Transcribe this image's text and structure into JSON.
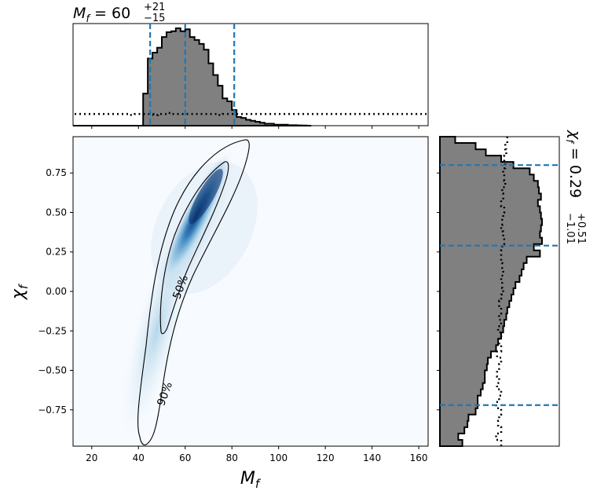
{
  "chart_data": {
    "type": "corner_plot",
    "x_param": {
      "label": "M",
      "subscript": "f",
      "title_median": "60",
      "title_plus": "+21",
      "title_minus": "−15",
      "range": [
        12,
        164
      ],
      "ticks": [
        20,
        40,
        60,
        80,
        100,
        120,
        140,
        160
      ],
      "quantiles": [
        45,
        60,
        81
      ],
      "histogram_bin_edges": [
        12,
        14,
        16,
        18,
        20,
        22,
        24,
        26,
        28,
        30,
        32,
        34,
        36,
        38,
        40,
        42,
        44,
        46,
        48,
        50,
        52,
        54,
        56,
        58,
        60,
        62,
        64,
        66,
        68,
        70,
        72,
        74,
        76,
        78,
        80,
        82,
        84,
        86,
        88,
        90,
        92,
        94,
        96,
        98,
        100,
        102,
        104,
        106,
        108,
        110,
        112,
        114
      ],
      "histogram_values": [
        0,
        0,
        0,
        0,
        0,
        0,
        0,
        0,
        0,
        0,
        0,
        0,
        0,
        0,
        0,
        0.33,
        0.69,
        0.75,
        0.8,
        0.91,
        0.96,
        0.97,
        1.0,
        0.97,
        0.99,
        0.91,
        0.88,
        0.84,
        0.78,
        0.64,
        0.52,
        0.41,
        0.28,
        0.25,
        0.16,
        0.09,
        0.08,
        0.06,
        0.05,
        0.04,
        0.03,
        0.02,
        0.02,
        0.01,
        0.01,
        0.01,
        0.005,
        0.005,
        0.003,
        0.002,
        0
      ],
      "prior_values": [
        0.12,
        0.12,
        0.12,
        0.12,
        0.12,
        0.12,
        0.12,
        0.12,
        0.12,
        0.12,
        0.12,
        0.12,
        0.11,
        0.12,
        0.12,
        0.12,
        0.12,
        0.11,
        0.12,
        0.12,
        0.13,
        0.12,
        0.12,
        0.12,
        0.12,
        0.12,
        0.12,
        0.12,
        0.12,
        0.12,
        0.12,
        0.11,
        0.12,
        0.12,
        0.12,
        0.12,
        0.12,
        0.12,
        0.12,
        0.12,
        0.12,
        0.12,
        0.12,
        0.12,
        0.12,
        0.12,
        0.12,
        0.12,
        0.12,
        0.12,
        0.12,
        0.12,
        0.12,
        0.12,
        0.12,
        0.12,
        0.12,
        0.12,
        0.12,
        0.12,
        0.12,
        0.12,
        0.12,
        0.12,
        0.12,
        0.12,
        0.12,
        0.12,
        0.12,
        0.12,
        0.12,
        0.12,
        0.12,
        0.12,
        0.12,
        0.12
      ]
    },
    "y_param": {
      "label": "χ",
      "subscript": "f",
      "title_median": "0.29",
      "title_plus": "+0.51",
      "title_minus": "−1.01",
      "range": [
        -0.98,
        0.98
      ],
      "ticks": [
        -0.75,
        -0.5,
        -0.25,
        0.0,
        0.25,
        0.5,
        0.75
      ],
      "tick_labels": [
        "−0.75",
        "−0.50",
        "−0.25",
        "0.00",
        "0.25",
        "0.50",
        "0.75"
      ],
      "quantiles": [
        -0.72,
        0.29,
        0.8
      ],
      "histogram_bin_edges": [
        -0.98,
        -0.94,
        -0.9,
        -0.86,
        -0.82,
        -0.78,
        -0.74,
        -0.7,
        -0.66,
        -0.62,
        -0.58,
        -0.54,
        -0.5,
        -0.46,
        -0.42,
        -0.38,
        -0.34,
        -0.3,
        -0.26,
        -0.22,
        -0.18,
        -0.14,
        -0.1,
        -0.06,
        -0.02,
        0.02,
        0.06,
        0.1,
        0.14,
        0.18,
        0.22,
        0.26,
        0.3,
        0.34,
        0.38,
        0.42,
        0.46,
        0.5,
        0.54,
        0.58,
        0.62,
        0.66,
        0.7,
        0.74,
        0.78,
        0.82,
        0.86,
        0.9,
        0.94,
        0.98
      ],
      "histogram_values": [
        0.22,
        0.18,
        0.24,
        0.27,
        0.28,
        0.35,
        0.37,
        0.37,
        0.4,
        0.42,
        0.44,
        0.44,
        0.46,
        0.47,
        0.5,
        0.55,
        0.57,
        0.6,
        0.62,
        0.63,
        0.65,
        0.66,
        0.68,
        0.7,
        0.72,
        0.74,
        0.78,
        0.8,
        0.82,
        0.85,
        0.98,
        0.92,
        1.0,
        0.98,
        0.99,
        1.0,
        0.99,
        0.98,
        0.96,
        0.99,
        0.97,
        0.96,
        0.92,
        0.88,
        0.72,
        0.6,
        0.45,
        0.35,
        0.15
      ],
      "prior_values": [
        0.6,
        0.55,
        0.6,
        0.57,
        0.58,
        0.6,
        0.55,
        0.58,
        0.6,
        0.56,
        0.58,
        0.56,
        0.58,
        0.6,
        0.56,
        0.6,
        0.58,
        0.6,
        0.57,
        0.6,
        0.58,
        0.6,
        0.58,
        0.6,
        0.62,
        0.61,
        0.6,
        0.62,
        0.61,
        0.6,
        0.6,
        0.61,
        0.63,
        0.62,
        0.6,
        0.61,
        0.62,
        0.63,
        0.6,
        0.62,
        0.61,
        0.64,
        0.63,
        0.62,
        0.64,
        0.63,
        0.65,
        0.64,
        0.66
      ]
    },
    "joint": {
      "type": "density",
      "contour_labels": [
        "50%",
        "90%"
      ]
    }
  }
}
